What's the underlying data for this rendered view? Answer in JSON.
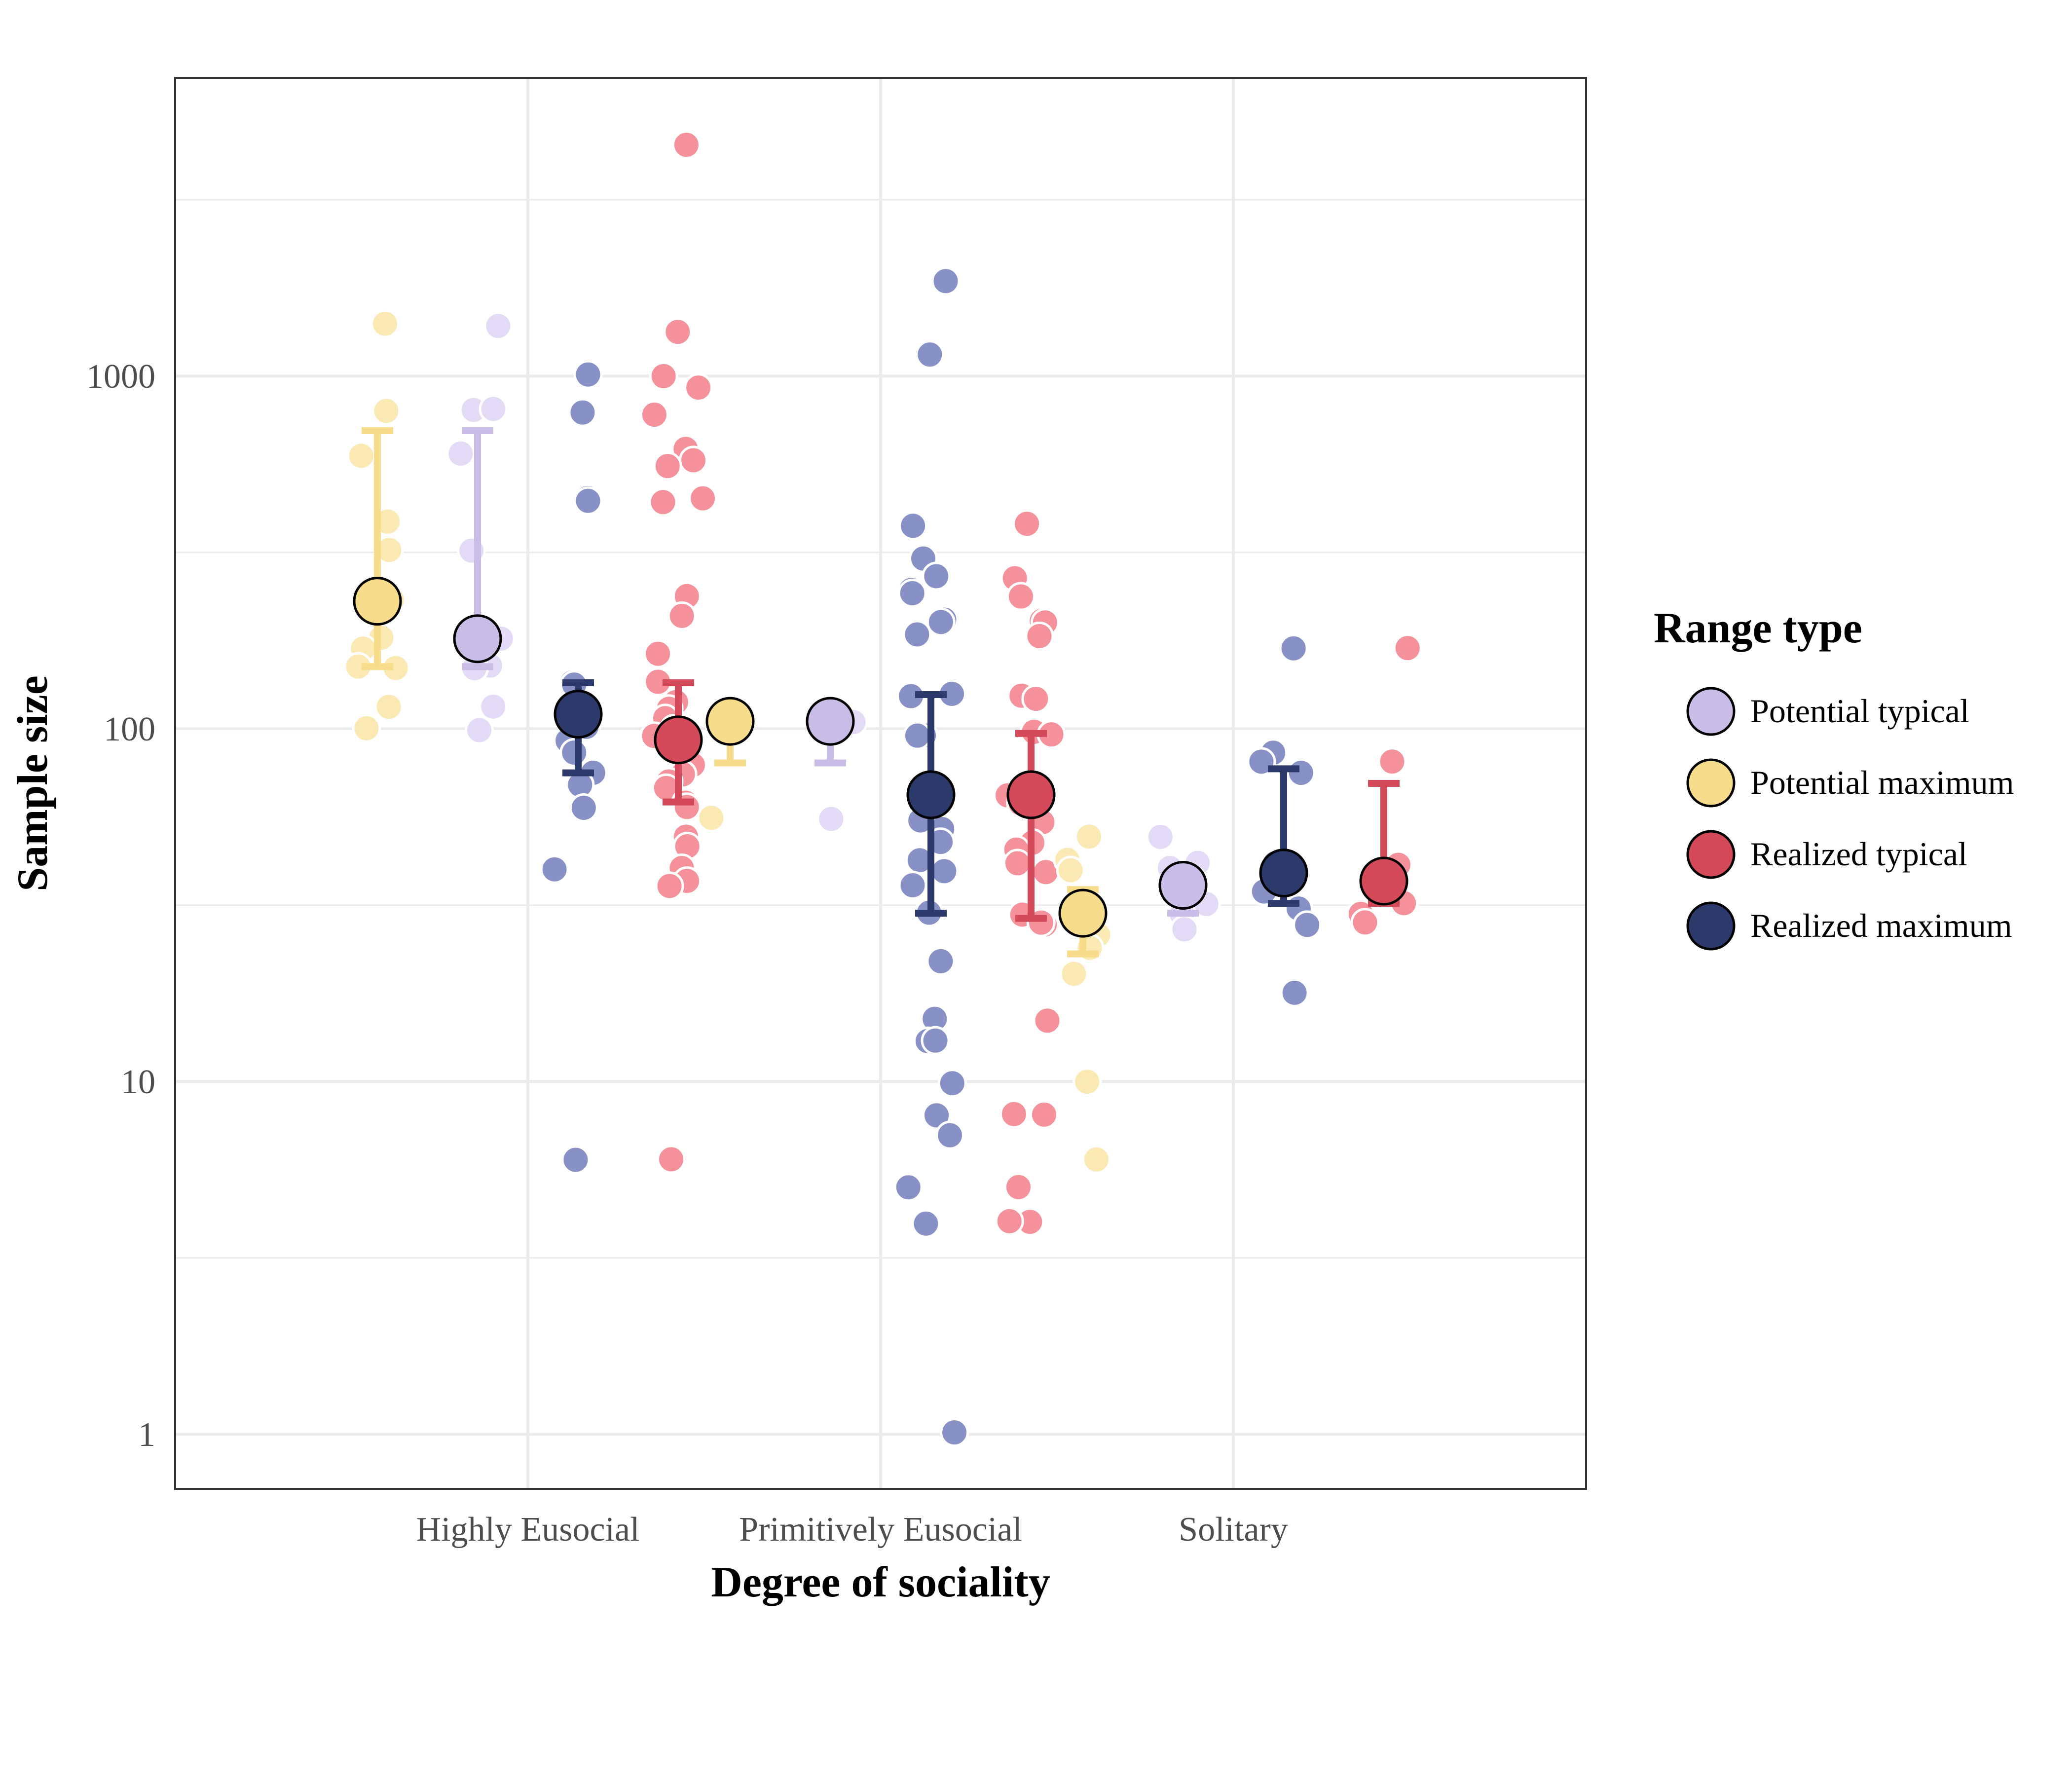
{
  "chart_data": {
    "type": "scatter",
    "xlabel": "Degree of sociality",
    "ylabel": "Sample size",
    "y_scale": "log10",
    "ylim": [
      0.7,
      7000
    ],
    "y_ticks": [
      1,
      10,
      100,
      1000
    ],
    "y_tick_labels": [
      "1",
      "10",
      "100",
      "1000"
    ],
    "grid": true,
    "categories": [
      "Highly Eusocial",
      "Primitively Eusocial",
      "Solitary"
    ],
    "legend": {
      "title": "Range type",
      "position": "right",
      "entries": [
        "Potential typical",
        "Potential maximum",
        "Realized typical",
        "Realized maximum"
      ]
    },
    "colors": {
      "Potential maximum": "#f7dc8c",
      "Potential typical": "#c9bce6",
      "Realized maximum": "#2b396b",
      "Realized typical": "#d54a5a",
      "Potential maximum_light": "#fbe9b4",
      "Potential typical_light": "#e3dbf5",
      "Realized maximum_light": "#8891c6",
      "Realized typical_light": "#f4919b"
    },
    "series": [
      {
        "category": "Highly Eusocial",
        "range_type": "Potential maximum",
        "mean": 230,
        "error_low": 150,
        "error_high": 700,
        "points": [
          1400,
          800,
          800,
          600,
          390,
          320,
          230,
          180,
          170,
          150,
          150,
          115,
          100
        ]
      },
      {
        "category": "Highly Eusocial",
        "range_type": "Potential typical",
        "mean": 180,
        "error_low": 150,
        "error_high": 700,
        "points": [
          1400,
          800,
          800,
          600,
          320,
          180,
          150,
          150,
          115,
          100
        ]
      },
      {
        "category": "Highly Eusocial",
        "range_type": "Realized maximum",
        "mean": 110,
        "error_low": 75,
        "error_high": 135,
        "points": [
          1000,
          780,
          450,
          440,
          135,
          135,
          115,
          110,
          100,
          92,
          85,
          75,
          70,
          60,
          40,
          6
        ]
      },
      {
        "category": "Highly Eusocial",
        "range_type": "Realized typical",
        "mean": 93,
        "error_low": 62,
        "error_high": 135,
        "points": [
          4500,
          1350,
          1000,
          930,
          780,
          620,
          580,
          560,
          450,
          440,
          240,
          210,
          165,
          135,
          120,
          115,
          108,
          100,
          95,
          85,
          80,
          75,
          70,
          68,
          62,
          60,
          50,
          46,
          40,
          37,
          36,
          6
        ]
      },
      {
        "category": "Primitively Eusocial",
        "range_type": "Potential maximum",
        "mean": 105,
        "error_low": 80,
        "error_high": 105,
        "points": [
          105,
          56
        ]
      },
      {
        "category": "Primitively Eusocial",
        "range_type": "Potential typical",
        "mean": 105,
        "error_low": 80,
        "error_high": 105,
        "points": [
          105,
          56
        ]
      },
      {
        "category": "Primitively Eusocial",
        "range_type": "Realized maximum",
        "mean": 65,
        "error_low": 30,
        "error_high": 125,
        "points": [
          1850,
          1150,
          380,
          300,
          270,
          245,
          240,
          205,
          200,
          185,
          125,
          125,
          97,
          95,
          65,
          64,
          62,
          55,
          52,
          48,
          42,
          39,
          36,
          30,
          22,
          15,
          13,
          13,
          10,
          8,
          7,
          5,
          4,
          1
        ]
      },
      {
        "category": "Primitively Eusocial",
        "range_type": "Realized typical",
        "mean": 65,
        "error_low": 29,
        "error_high": 97,
        "points": [
          380,
          270,
          240,
          205,
          200,
          185,
          125,
          122,
          97,
          97,
          65,
          62,
          55,
          48,
          45,
          42,
          39,
          30,
          28,
          28,
          15,
          8,
          8,
          5,
          4,
          4
        ]
      },
      {
        "category": "Solitary",
        "range_type": "Potential maximum",
        "mean": 30,
        "error_low": 23,
        "error_high": 35,
        "points": [
          50,
          42,
          40,
          32,
          28,
          26,
          24,
          20,
          10,
          6
        ]
      },
      {
        "category": "Solitary",
        "range_type": "Potential typical",
        "mean": 36,
        "error_low": 30,
        "error_high": 40,
        "points": [
          50,
          42,
          40,
          38,
          35,
          32,
          30,
          27
        ]
      },
      {
        "category": "Solitary",
        "range_type": "Realized maximum",
        "mean": 39,
        "error_low": 32,
        "error_high": 77,
        "points": [
          170,
          85,
          80,
          75,
          41,
          35,
          31,
          28,
          18
        ]
      },
      {
        "category": "Solitary",
        "range_type": "Realized typical",
        "mean": 37,
        "error_low": 32,
        "error_high": 70,
        "points": [
          170,
          80,
          41,
          34,
          32,
          30,
          28
        ]
      }
    ]
  }
}
